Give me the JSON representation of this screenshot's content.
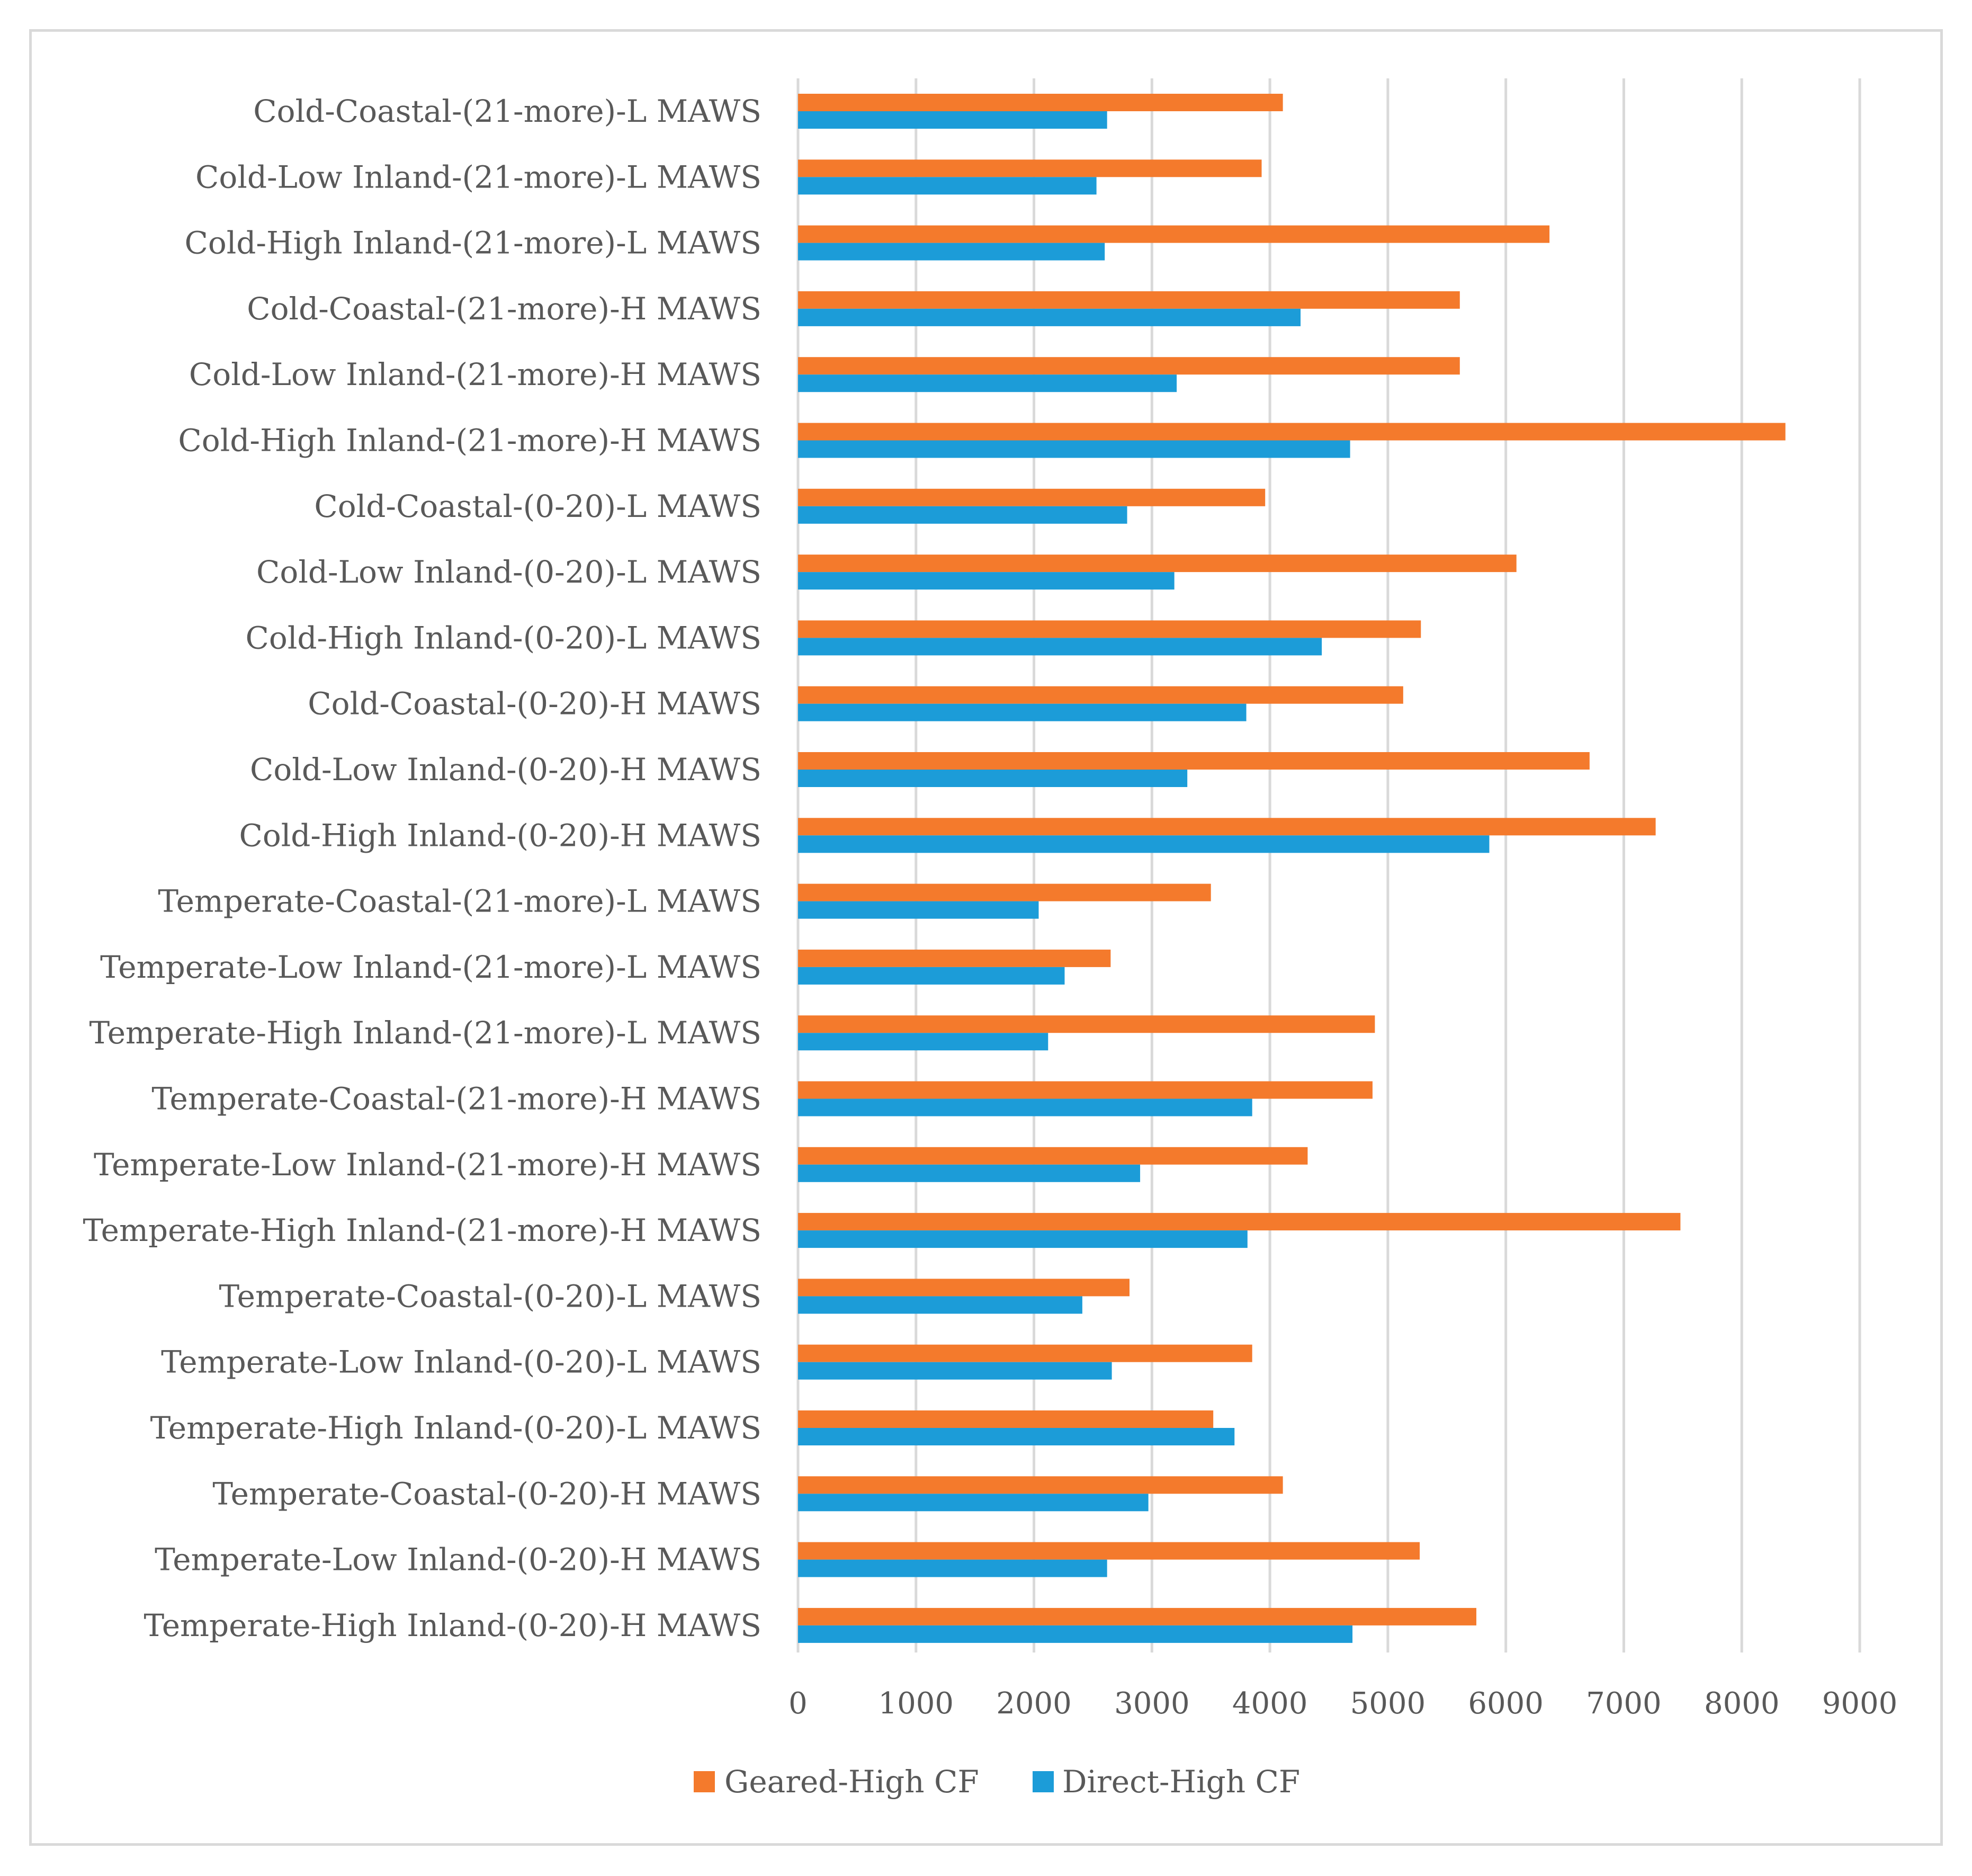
{
  "chart_data": {
    "type": "bar",
    "orientation": "horizontal",
    "title": "",
    "xlabel": "",
    "ylabel": "",
    "xlim": [
      0,
      9000
    ],
    "x_ticks": [
      0,
      1000,
      2000,
      3000,
      4000,
      5000,
      6000,
      7000,
      8000,
      9000
    ],
    "x_tick_labels": [
      "0",
      "1000",
      "2000",
      "3000",
      "4000",
      "5000",
      "6000",
      "7000",
      "8000",
      "9000"
    ],
    "grid": "vertical",
    "legend_position": "bottom",
    "categories": [
      "Cold-Coastal-(21-more)-L MAWS",
      "Cold-Low Inland-(21-more)-L MAWS",
      "Cold-High Inland-(21-more)-L MAWS",
      "Cold-Coastal-(21-more)-H MAWS",
      "Cold-Low Inland-(21-more)-H MAWS",
      "Cold-High Inland-(21-more)-H MAWS",
      "Cold-Coastal-(0-20)-L MAWS",
      "Cold-Low Inland-(0-20)-L MAWS",
      "Cold-High Inland-(0-20)-L MAWS",
      "Cold-Coastal-(0-20)-H MAWS",
      "Cold-Low Inland-(0-20)-H MAWS",
      "Cold-High Inland-(0-20)-H MAWS",
      "Temperate-Coastal-(21-more)-L MAWS",
      "Temperate-Low Inland-(21-more)-L MAWS",
      "Temperate-High Inland-(21-more)-L MAWS",
      "Temperate-Coastal-(21-more)-H MAWS",
      "Temperate-Low Inland-(21-more)-H MAWS",
      "Temperate-High Inland-(21-more)-H MAWS",
      "Temperate-Coastal-(0-20)-L MAWS",
      "Temperate-Low Inland-(0-20)-L MAWS",
      "Temperate-High Inland-(0-20)-L MAWS",
      "Temperate-Coastal-(0-20)-H MAWS",
      "Temperate-Low Inland-(0-20)-H MAWS",
      "Temperate-High Inland-(0-20)-H MAWS"
    ],
    "series": [
      {
        "name": "Geared-High CF",
        "color": "#f47a2c",
        "values": [
          4110,
          3930,
          6370,
          5610,
          5610,
          8370,
          3960,
          6090,
          5280,
          5130,
          6710,
          7270,
          3500,
          2650,
          4890,
          4870,
          4320,
          7480,
          2810,
          3850,
          3520,
          4110,
          5270,
          5750
        ]
      },
      {
        "name": "Direct-High CF",
        "color": "#1c9cd8",
        "values": [
          2620,
          2530,
          2600,
          4260,
          3210,
          4680,
          2790,
          3190,
          4440,
          3800,
          3300,
          5860,
          2040,
          2260,
          2120,
          3850,
          2900,
          3810,
          2410,
          2660,
          3700,
          2970,
          2620,
          4700
        ]
      }
    ]
  }
}
